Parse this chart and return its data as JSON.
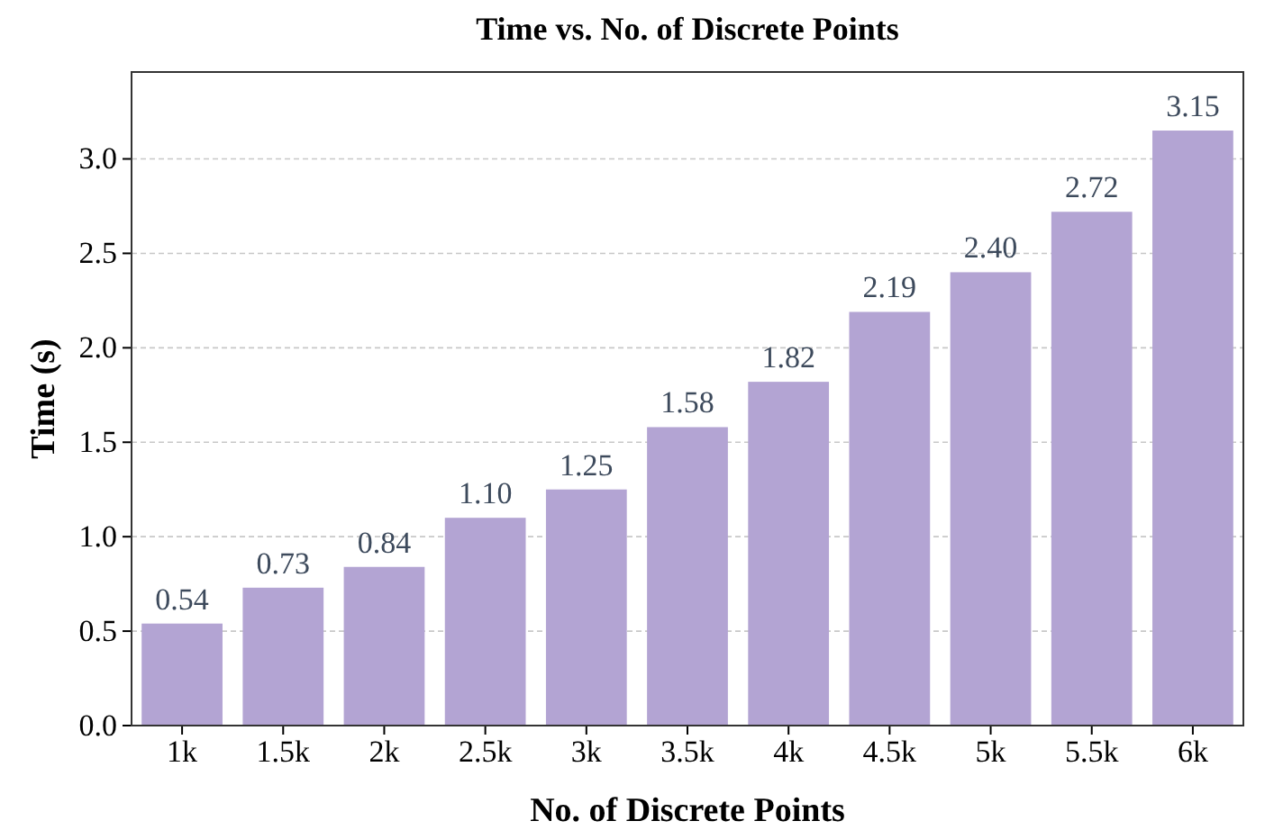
{
  "chart_data": {
    "type": "bar",
    "title": "Time vs. No. of Discrete Points",
    "xlabel": "No. of Discrete Points",
    "ylabel": "Time (s)",
    "categories": [
      "1k",
      "1.5k",
      "2k",
      "2.5k",
      "3k",
      "3.5k",
      "4k",
      "4.5k",
      "5k",
      "5.5k",
      "6k"
    ],
    "values": [
      0.54,
      0.73,
      0.84,
      1.1,
      1.25,
      1.58,
      1.82,
      2.19,
      2.4,
      2.72,
      3.15
    ],
    "value_labels": [
      "0.54",
      "0.73",
      "0.84",
      "1.10",
      "1.25",
      "1.58",
      "1.82",
      "2.19",
      "2.40",
      "2.72",
      "3.15"
    ],
    "color": "#b3a4d3",
    "ylim": [
      0,
      3.46
    ],
    "yticks": [
      {
        "value": 0,
        "label": "0.0"
      },
      {
        "value": 0.5,
        "label": "0.5"
      },
      {
        "value": 1,
        "label": "1.0"
      },
      {
        "value": 1.5,
        "label": "1.5"
      },
      {
        "value": 2,
        "label": "2.0"
      },
      {
        "value": 2.5,
        "label": "2.5"
      },
      {
        "value": 3,
        "label": "3.0"
      }
    ],
    "grid": "y"
  }
}
